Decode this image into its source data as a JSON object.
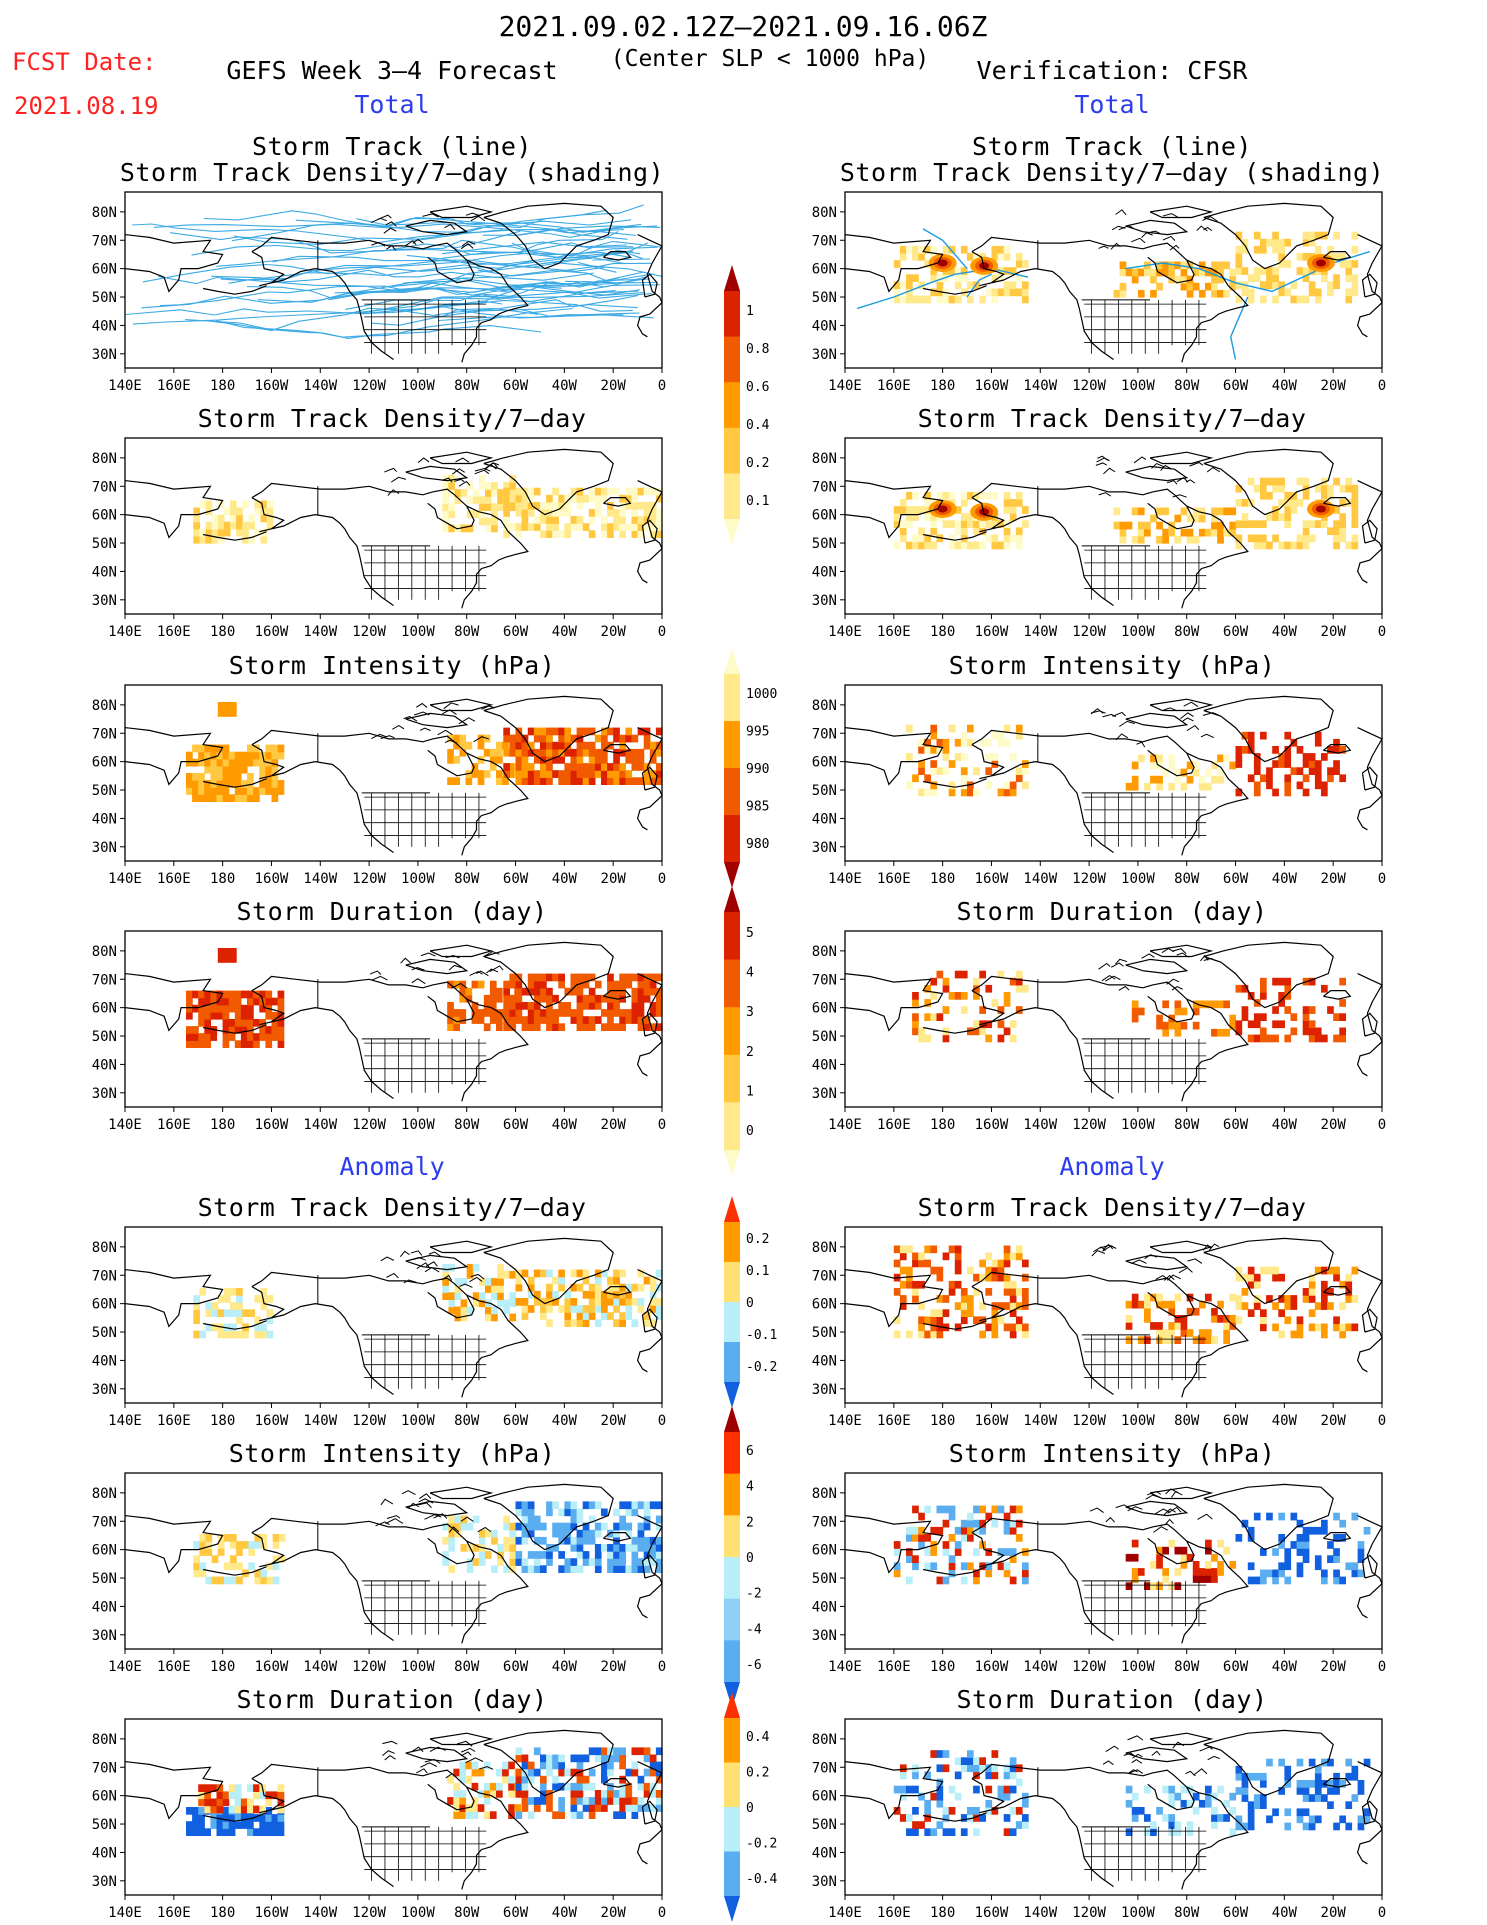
{
  "header": {
    "fcst_date_label": "FCST Date:",
    "fcst_date_value": "2021.08.19",
    "date_range": "2021.09.02.12Z–2021.09.16.06Z",
    "left_title": "GEFS Week 3–4 Forecast",
    "center_subtitle": "(Center SLP < 1000 hPa)",
    "right_title": "Verification: CFSR"
  },
  "sections": {
    "total": "Total",
    "anomaly": "Anomaly"
  },
  "panel_titles": {
    "track_line": "Storm Track (line)",
    "track_density_shading": "Storm Track Density/7–day (shading)",
    "track_density": "Storm Track Density/7–day",
    "intensity": "Storm Intensity (hPa)",
    "duration": "Storm Duration (day)"
  },
  "axes": {
    "lon_labels": [
      "140E",
      "160E",
      "180",
      "160W",
      "140W",
      "120W",
      "100W",
      "80W",
      "60W",
      "40W",
      "20W",
      "0"
    ],
    "lat_labels": [
      "80N",
      "70N",
      "60N",
      "50N",
      "40N",
      "30N"
    ]
  },
  "colorbars": {
    "track_density": {
      "labels": [
        "1",
        "0.8",
        "0.6",
        "0.4",
        "0.2",
        "0.1"
      ],
      "colors": [
        "#a00000",
        "#dd2200",
        "#f25a00",
        "#ff9a00",
        "#ffc840",
        "#ffe98a",
        "#fffbc8"
      ]
    },
    "intensity": {
      "labels": [
        "1000",
        "995",
        "990",
        "985",
        "980"
      ],
      "colors": [
        "#fffbc8",
        "#ffe98a",
        "#ff9a00",
        "#f25a00",
        "#dd2200",
        "#a00000"
      ]
    },
    "duration": {
      "labels": [
        "5",
        "4",
        "3",
        "2",
        "1",
        "0"
      ],
      "colors": [
        "#a00000",
        "#dd2200",
        "#f25a00",
        "#ff9a00",
        "#ffc840",
        "#ffe98a",
        "#fffbc8"
      ]
    },
    "anom_density": {
      "labels": [
        "0.2",
        "0.1",
        "0",
        "-0.1",
        "-0.2"
      ],
      "colors": [
        "#ff3000",
        "#ff9a00",
        "#ffe070",
        "#b8eef8",
        "#5aaef0",
        "#1060e0"
      ]
    },
    "anom_intensity": {
      "labels": [
        "6",
        "4",
        "2",
        "0",
        "-2",
        "-4",
        "-6"
      ],
      "colors": [
        "#a00000",
        "#ff3000",
        "#ff9a00",
        "#ffe070",
        "#b8eef8",
        "#8fcff5",
        "#5aaef0",
        "#1060e0"
      ]
    },
    "anom_duration": {
      "labels": [
        "0.4",
        "0.2",
        "0",
        "-0.2",
        "-0.4"
      ],
      "colors": [
        "#ff3000",
        "#ff9a00",
        "#ffe070",
        "#b8eef8",
        "#5aaef0",
        "#1060e0"
      ]
    }
  }
}
